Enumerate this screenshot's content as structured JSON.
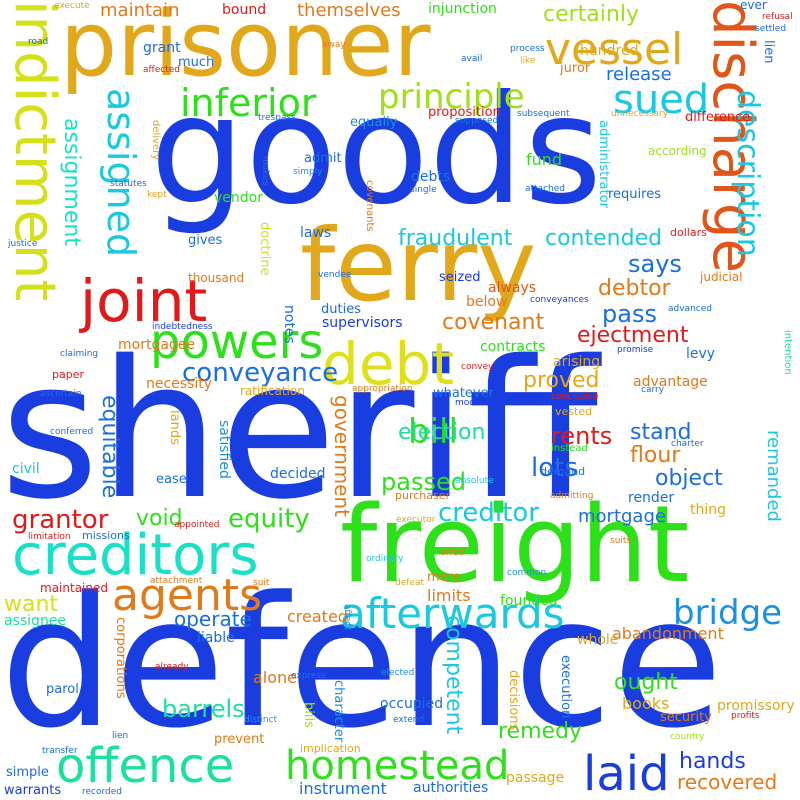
{
  "words": [
    {
      "text": "goods",
      "color": "#1a3de0"
    },
    {
      "text": "sheriff",
      "color": "#1a3de0"
    },
    {
      "text": "defence",
      "color": "#1a3de0"
    },
    {
      "text": "prisoner",
      "color": "#e0a81a"
    },
    {
      "text": "freight",
      "color": "#2ee01a"
    },
    {
      "text": "ferry",
      "color": "#e0a81a"
    },
    {
      "text": "discharge",
      "color": "#e0561a"
    },
    {
      "text": "indictment",
      "color": "#d4e01a"
    },
    {
      "text": "creditors",
      "color": "#1ae0c8"
    },
    {
      "text": "joint",
      "color": "#e01a1a"
    },
    {
      "text": "debt",
      "color": "#e0e01a"
    },
    {
      "text": "vessel",
      "color": "#e0a81a"
    },
    {
      "text": "powers",
      "color": "#2ee01a"
    },
    {
      "text": "agents",
      "color": "#e07a1a"
    },
    {
      "text": "afterwards",
      "color": "#1ac8e0"
    },
    {
      "text": "offence",
      "color": "#1ae0a0"
    },
    {
      "text": "homestead",
      "color": "#2ee01a"
    },
    {
      "text": "laid",
      "color": "#1a3de0"
    },
    {
      "text": "bridge",
      "color": "#1a90e0"
    },
    {
      "text": "assigned",
      "color": "#1ac8e0"
    },
    {
      "text": "inferior",
      "color": "#2ee01a"
    },
    {
      "text": "principle",
      "color": "#a0e01a"
    },
    {
      "text": "sued",
      "color": "#1ac8e0"
    },
    {
      "text": "description",
      "color": "#1ac8e0"
    },
    {
      "text": "bill",
      "color": "#2ee01a"
    },
    {
      "text": "conveyance",
      "color": "#1a6ee0"
    },
    {
      "text": "assignment",
      "color": "#1ae0c8"
    },
    {
      "text": "equitable",
      "color": "#1a6ee0"
    },
    {
      "text": "grantor",
      "color": "#e01a1a"
    },
    {
      "text": "equity",
      "color": "#2ee01a"
    },
    {
      "text": "creditor",
      "color": "#1ac8e0"
    },
    {
      "text": "mortgage",
      "color": "#1a6ee0"
    },
    {
      "text": "fraudulent",
      "color": "#1ac8e0"
    },
    {
      "text": "contended",
      "color": "#1ac8e0"
    },
    {
      "text": "says",
      "color": "#1a6ee0"
    },
    {
      "text": "debtor",
      "color": "#e07a1a"
    },
    {
      "text": "pass",
      "color": "#1a6ee0"
    },
    {
      "text": "covenant",
      "color": "#e07a1a"
    },
    {
      "text": "ejectment",
      "color": "#e01a1a"
    },
    {
      "text": "rents",
      "color": "#e01a1a"
    },
    {
      "text": "lots",
      "color": "#1a6ee0"
    },
    {
      "text": "flour",
      "color": "#e07a1a"
    },
    {
      "text": "passed",
      "color": "#2ee01a"
    },
    {
      "text": "proved",
      "color": "#e0a81a"
    },
    {
      "text": "election",
      "color": "#1ae0a0"
    },
    {
      "text": "stand",
      "color": "#1a6ee0"
    },
    {
      "text": "object",
      "color": "#1a6ee0"
    },
    {
      "text": "government",
      "color": "#e07a1a"
    },
    {
      "text": "void",
      "color": "#2ee01a"
    },
    {
      "text": "want",
      "color": "#d4e01a"
    },
    {
      "text": "assignee",
      "color": "#1ae0a0"
    },
    {
      "text": "operate",
      "color": "#1a6ee0"
    },
    {
      "text": "limits",
      "color": "#e07a1a"
    },
    {
      "text": "created",
      "color": "#e07a1a"
    },
    {
      "text": "founded",
      "color": "#2ee01a"
    },
    {
      "text": "competent",
      "color": "#1ac8e0"
    },
    {
      "text": "abandonment",
      "color": "#e07a1a"
    },
    {
      "text": "ought",
      "color": "#2ee01a"
    },
    {
      "text": "barrels",
      "color": "#1ae0a0"
    },
    {
      "text": "alone",
      "color": "#e07a1a"
    },
    {
      "text": "books",
      "color": "#e0a81a"
    },
    {
      "text": "remedy",
      "color": "#2ee01a"
    },
    {
      "text": "hands",
      "color": "#1a3de0"
    },
    {
      "text": "recovered",
      "color": "#e07a1a"
    },
    {
      "text": "instrument",
      "color": "#1a6ee0"
    },
    {
      "text": "authorities",
      "color": "#1a6ee0"
    },
    {
      "text": "passage",
      "color": "#e0a81a"
    },
    {
      "text": "maintain",
      "color": "#e07a1a"
    },
    {
      "text": "bound",
      "color": "#e01a1a"
    },
    {
      "text": "themselves",
      "color": "#e07a1a"
    },
    {
      "text": "injunction",
      "color": "#2ee01a"
    },
    {
      "text": "certainly",
      "color": "#a0e01a"
    },
    {
      "text": "hundred",
      "color": "#e0a81a"
    },
    {
      "text": "release",
      "color": "#1a6ee0"
    },
    {
      "text": "juror",
      "color": "#e07a1a"
    },
    {
      "text": "notes",
      "color": "#1a6ee0"
    },
    {
      "text": "mortgagee",
      "color": "#e07a1a"
    },
    {
      "text": "supervisors",
      "color": "#1a3de0"
    },
    {
      "text": "contracts",
      "color": "#2ee01a"
    },
    {
      "text": "arising",
      "color": "#e0a81a"
    },
    {
      "text": "advantage",
      "color": "#e07a1a"
    },
    {
      "text": "necessity",
      "color": "#e07a1a"
    },
    {
      "text": "whatever",
      "color": "#1a6ee0"
    },
    {
      "text": "satisfied",
      "color": "#1a90e0"
    },
    {
      "text": "decided",
      "color": "#1a6ee0"
    },
    {
      "text": "civil",
      "color": "#1ac8e0"
    },
    {
      "text": "ease",
      "color": "#1a6ee0"
    },
    {
      "text": "lands",
      "color": "#e0a81a"
    },
    {
      "text": "thing",
      "color": "#e0a81a"
    },
    {
      "text": "remanded",
      "color": "#1ac8e0"
    },
    {
      "text": "render",
      "color": "#1a6ee0"
    },
    {
      "text": "levy",
      "color": "#1a6ee0"
    },
    {
      "text": "always",
      "color": "#e0561a"
    },
    {
      "text": "below",
      "color": "#e07a1a"
    },
    {
      "text": "debts",
      "color": "#1a6ee0"
    },
    {
      "text": "fund",
      "color": "#2ee01a"
    },
    {
      "text": "duties",
      "color": "#1a6ee0"
    },
    {
      "text": "laws",
      "color": "#1a6ee0"
    },
    {
      "text": "vendor",
      "color": "#2ee01a"
    },
    {
      "text": "thousand",
      "color": "#e07a1a"
    },
    {
      "text": "gives",
      "color": "#1a6ee0"
    },
    {
      "text": "doctrine",
      "color": "#d4e01a"
    },
    {
      "text": "admit",
      "color": "#1a6ee0"
    },
    {
      "text": "equally",
      "color": "#1a90e0"
    },
    {
      "text": "grant",
      "color": "#1a6ee0"
    },
    {
      "text": "much",
      "color": "#1a6ee0"
    },
    {
      "text": "proposition",
      "color": "#e01a1a"
    },
    {
      "text": "difference",
      "color": "#e01a1a"
    },
    {
      "text": "according",
      "color": "#a0e01a"
    },
    {
      "text": "requires",
      "color": "#1a6ee0"
    },
    {
      "text": "administrator",
      "color": "#1ac8e0"
    },
    {
      "text": "judicial",
      "color": "#e07a1a"
    },
    {
      "text": "seized",
      "color": "#1a3de0"
    },
    {
      "text": "dollars",
      "color": "#e01a1a"
    },
    {
      "text": "mere",
      "color": "#e07a1a"
    },
    {
      "text": "whole",
      "color": "#e0a81a"
    },
    {
      "text": "liable",
      "color": "#1a6ee0"
    },
    {
      "text": "parol",
      "color": "#1a6ee0"
    },
    {
      "text": "occupied",
      "color": "#1a6ee0"
    },
    {
      "text": "decisions",
      "color": "#e0a81a"
    },
    {
      "text": "execution",
      "color": "#1a6ee0"
    },
    {
      "text": "promissory",
      "color": "#e0a81a"
    },
    {
      "text": "security",
      "color": "#e07a1a"
    },
    {
      "text": "corporations",
      "color": "#e07a1a"
    },
    {
      "text": "bills",
      "color": "#a0e01a"
    },
    {
      "text": "character",
      "color": "#1a90e0"
    },
    {
      "text": "prevent",
      "color": "#e07a1a"
    },
    {
      "text": "simple",
      "color": "#1a6ee0"
    },
    {
      "text": "warrants",
      "color": "#1a3de0"
    },
    {
      "text": "purchaser",
      "color": "#e07a1a"
    },
    {
      "text": "demand",
      "color": "#1a6ee0"
    },
    {
      "text": "missions",
      "color": "#1a6ee0"
    },
    {
      "text": "maintained",
      "color": "#e01a1a"
    },
    {
      "text": "vested",
      "color": "#e0a81a"
    },
    {
      "text": "instead",
      "color": "#2ee01a"
    },
    {
      "text": "mode",
      "color": "#1a3de0"
    },
    {
      "text": "conclusive",
      "color": "#e01a1a"
    },
    {
      "text": "ratification",
      "color": "#e0a81a"
    },
    {
      "text": "appropriation",
      "color": "#e07a1a"
    },
    {
      "text": "paper",
      "color": "#e01a1a"
    },
    {
      "text": "conferred",
      "color": "#1a6ee0"
    },
    {
      "text": "ascertain",
      "color": "#1a6ee0"
    },
    {
      "text": "claiming",
      "color": "#1a6ee0"
    },
    {
      "text": "convey",
      "color": "#e01a1a"
    },
    {
      "text": "intention",
      "color": "#1ae0a0"
    },
    {
      "text": "promise",
      "color": "#1a3de0"
    },
    {
      "text": "advanced",
      "color": "#1a6ee0"
    },
    {
      "text": "conveyances",
      "color": "#1a3de0"
    },
    {
      "text": "indebtedness",
      "color": "#1a3de0"
    },
    {
      "text": "vendee",
      "color": "#1a6ee0"
    },
    {
      "text": "carry",
      "color": "#1a6ee0"
    },
    {
      "text": "charter",
      "color": "#1a6ee0"
    },
    {
      "text": "absolute",
      "color": "#1ac8e0"
    },
    {
      "text": "admitting",
      "color": "#e07a1a"
    },
    {
      "text": "executor",
      "color": "#e0a81a"
    },
    {
      "text": "appointed",
      "color": "#e01a1a"
    },
    {
      "text": "limitation",
      "color": "#e01a1a"
    },
    {
      "text": "ordinary",
      "color": "#1ac8e0"
    },
    {
      "text": "erred",
      "color": "#e07a1a"
    },
    {
      "text": "suits",
      "color": "#e07a1a"
    },
    {
      "text": "attachment",
      "color": "#e07a1a"
    },
    {
      "text": "suit",
      "color": "#e07a1a"
    },
    {
      "text": "defeat",
      "color": "#e0a81a"
    },
    {
      "text": "common",
      "color": "#1a90e0"
    },
    {
      "text": "affect",
      "color": "#1a90e0"
    },
    {
      "text": "already",
      "color": "#e01a1a"
    },
    {
      "text": "express",
      "color": "#1a6ee0"
    },
    {
      "text": "elected",
      "color": "#1a90e0"
    },
    {
      "text": "distinct",
      "color": "#1a90e0"
    },
    {
      "text": "extend",
      "color": "#1a6ee0"
    },
    {
      "text": "profits",
      "color": "#e01a1a"
    },
    {
      "text": "lien",
      "color": "#1a6ee0"
    },
    {
      "text": "implication",
      "color": "#e0a81a"
    },
    {
      "text": "country",
      "color": "#a0e01a"
    },
    {
      "text": "transfer",
      "color": "#1a6ee0"
    },
    {
      "text": "recorded",
      "color": "#1a6ee0"
    },
    {
      "text": "execute",
      "color": "#e0a81a"
    },
    {
      "text": "road",
      "color": "#1a6ee0"
    },
    {
      "text": "affected",
      "color": "#e01a1a"
    },
    {
      "text": "away",
      "color": "#e07a1a"
    },
    {
      "text": "process",
      "color": "#1a6ee0"
    },
    {
      "text": "avail",
      "color": "#1a6ee0"
    },
    {
      "text": "like",
      "color": "#e0a81a"
    },
    {
      "text": "ever",
      "color": "#1a6ee0"
    },
    {
      "text": "refusal",
      "color": "#e01a1a"
    },
    {
      "text": "settled",
      "color": "#1a6ee0"
    },
    {
      "text": "trespass",
      "color": "#1a6ee0"
    },
    {
      "text": "supposed",
      "color": "#1a6ee0"
    },
    {
      "text": "subsequent",
      "color": "#1a6ee0"
    },
    {
      "text": "unnecessary",
      "color": "#e0a81a"
    },
    {
      "text": "statutes",
      "color": "#1a6ee0"
    },
    {
      "text": "delivery",
      "color": "#e0a81a"
    },
    {
      "text": "kept",
      "color": "#e0a81a"
    },
    {
      "text": "makes",
      "color": "#1a6ee0"
    },
    {
      "text": "simply",
      "color": "#1a90e0"
    },
    {
      "text": "covenants",
      "color": "#e07a1a"
    },
    {
      "text": "single",
      "color": "#1a6ee0"
    },
    {
      "text": "attached",
      "color": "#1a6ee0"
    },
    {
      "text": "justice",
      "color": "#1a6ee0"
    }
  ]
}
